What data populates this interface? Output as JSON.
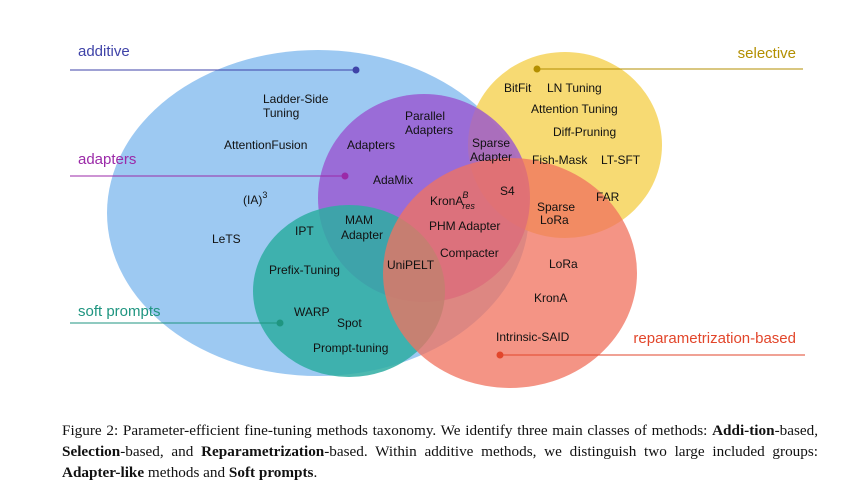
{
  "categories": {
    "additive": {
      "label": "additive",
      "color": "#3f43a8"
    },
    "selective": {
      "label": "selective",
      "color": "#b38f00"
    },
    "adapters": {
      "label": "adapters",
      "color": "#9b2aa8"
    },
    "soft_prompts": {
      "label": "soft prompts",
      "color": "#1f9580"
    },
    "reparametrization": {
      "label": "reparametrization-based",
      "color": "#e2462b"
    }
  },
  "circle_colors": {
    "additive": "#90c1f0",
    "selective": "#f6d35a",
    "adapters": "#9a55cf",
    "soft_prompts": "#2eada2",
    "reparametrization": "#f1735f"
  },
  "methods": {
    "ladder_side_1": "Ladder-Side",
    "ladder_side_2": "Tuning",
    "attention_fusion": "AttentionFusion",
    "ia3_base": "(IA)",
    "ia3_sup": "3",
    "lets": "LeTS",
    "ipt": "IPT",
    "prefix_tuning": "Prefix-Tuning",
    "warp": "WARP",
    "spot": "Spot",
    "prompt_tuning": "Prompt-tuning",
    "adapters": "Adapters",
    "parallel_1": "Parallel",
    "parallel_2": "Adapters",
    "adamix": "AdaMix",
    "mam_1": "MAM",
    "mam_2": "Adapter",
    "krona_base": "KronA",
    "krona_sup": "B",
    "krona_sub": "res",
    "phm_adapter": "PHM Adapter",
    "compacter": "Compacter",
    "unipelt": "UniPELT",
    "sparse_adapter_1": "Sparse",
    "sparse_adapter_2": "Adapter",
    "s4": "S4",
    "sparse_lora_1": "Sparse",
    "sparse_lora_2": "LoRa",
    "bitfit": "BitFit",
    "ln_tuning": "LN Tuning",
    "attention_tuning": "Attention Tuning",
    "diff_pruning": "Diff-Pruning",
    "fish_mask": "Fish-Mask",
    "lt_sft": "LT-SFT",
    "far": "FAR",
    "lora": "LoRa",
    "krona": "KronA",
    "intrinsic_said": "Intrinsic-SAID"
  },
  "caption": {
    "prefix": "Figure 2: Parameter-efficient fine-tuning methods taxonomy. We identify three main classes of methods: ",
    "addition_bold": "Addi-tion",
    "addition_rest": "-based, ",
    "selection_bold": "Selection",
    "selection_rest": "-based, and ",
    "reparam_bold": "Reparametrization",
    "reparam_rest": "-based. Within additive methods, we distinguish two large included groups: ",
    "adapter_bold": "Adapter-like",
    "adapter_rest": " methods and ",
    "soft_bold": "Soft prompts",
    "end": "."
  }
}
